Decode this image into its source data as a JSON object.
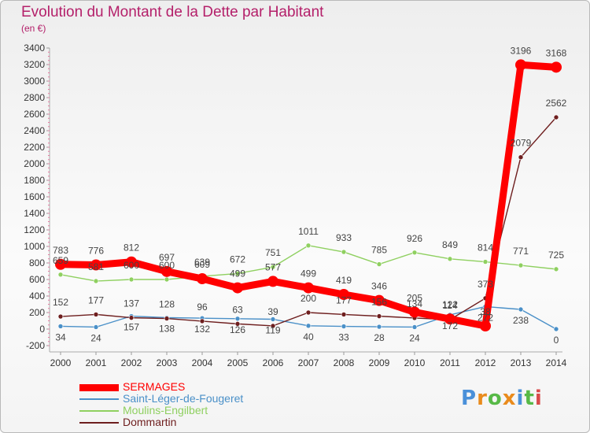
{
  "title": "Evolution du Montant de la Dette par Habitant",
  "subtitle": "(en €)",
  "logo": {
    "text": "Proxiti",
    "colors": [
      "#4a90d9",
      "#e98b1c",
      "#57b947",
      "#e98b1c",
      "#4a90d9",
      "#57b947",
      "#d94a4a"
    ]
  },
  "chart_data": {
    "type": "line",
    "title": "Evolution du Montant de la Dette par Habitant",
    "ylabel": "(en €)",
    "x": [
      "2000",
      "2001",
      "2002",
      "2003",
      "2004",
      "2005",
      "2006",
      "2007",
      "2008",
      "2009",
      "2010",
      "2011",
      "2012",
      "2013",
      "2014"
    ],
    "ylim": [
      -200,
      3400
    ],
    "yticks": [
      -200,
      0,
      200,
      400,
      600,
      800,
      1000,
      1200,
      1400,
      1600,
      1800,
      2000,
      2200,
      2400,
      2600,
      2800,
      3000,
      3200,
      3400
    ],
    "grid": false,
    "legend_position": "bottom-left",
    "series": [
      {
        "name": "SERMAGES",
        "color": "#ff0000",
        "values": [
          783,
          776,
          812,
          697,
          609,
          499,
          577,
          499,
          419,
          346,
          205,
          122,
          38,
          3196,
          3168
        ],
        "labels": [
          "783",
          "776",
          "812",
          "697",
          "609",
          "499",
          "577",
          "499",
          "419",
          "346",
          "205",
          "122",
          "38",
          "3196",
          "3168"
        ]
      },
      {
        "name": "Saint-Léger-de-Fougeret",
        "color": "#4a90c8",
        "values": [
          34,
          24,
          157,
          138,
          132,
          126,
          119,
          40,
          33,
          28,
          24,
          172,
          272,
          238,
          0
        ],
        "labels": [
          "34",
          "24",
          "157",
          "138",
          "132",
          "126",
          "119",
          "40",
          "33",
          "28",
          "24",
          "172",
          "272",
          "238",
          "0"
        ]
      },
      {
        "name": "Moulins-Engilbert",
        "color": "#8fd060",
        "values": [
          659,
          581,
          600,
          600,
          639,
          672,
          751,
          1011,
          933,
          785,
          926,
          849,
          814,
          771,
          725
        ],
        "labels": [
          "659",
          "581",
          "600",
          "600",
          "639",
          "672",
          "751",
          "1011",
          "933",
          "785",
          "926",
          "849",
          "814",
          "771",
          "725"
        ]
      },
      {
        "name": "Dommartin",
        "color": "#6e1e1e",
        "values": [
          152,
          177,
          137,
          128,
          96,
          63,
          39,
          200,
          177,
          156,
          134,
          114,
          373,
          2079,
          2562
        ],
        "labels": [
          "152",
          "177",
          "137",
          "128",
          "96",
          "63",
          "39",
          "200",
          "177",
          "156",
          "134",
          "114",
          "373",
          "2079",
          "2562"
        ]
      }
    ]
  }
}
